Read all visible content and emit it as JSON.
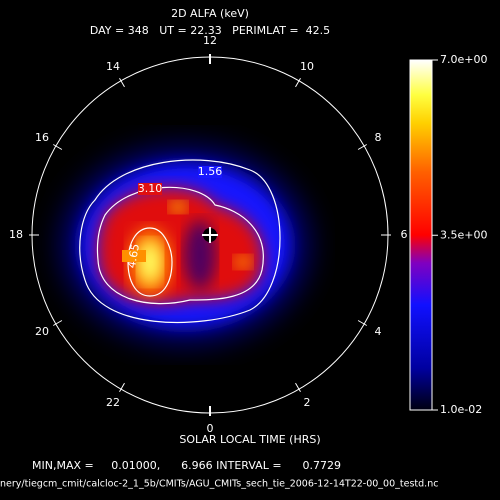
{
  "chart_data": {
    "type": "polar-contour",
    "title": "2D ALFA (keV)",
    "subtitle": "DAY = 348   UT = 22.33   PERIMLAT =  42.5",
    "xlabel": "SOLAR LOCAL TIME (HRS)",
    "angular_lim": [
      0,
      24
    ],
    "angular_ticks": [
      0,
      2,
      4,
      6,
      8,
      10,
      12,
      14,
      16,
      18,
      20,
      22
    ],
    "contours": [
      1.56,
      {
        "value": 3.1,
        "label": "3.10"
      },
      4.65
    ],
    "colorbar_lim": [
      0.01,
      7.0
    ],
    "colorbar_ticks": [
      {
        "value": 7.0,
        "label": "7.0e+00"
      },
      {
        "value": 3.5,
        "label": "3.5e+00"
      },
      {
        "value": 0.01,
        "label": "1.0e-02"
      }
    ],
    "stats": "MIN,MAX =     0.01000,      6.966 INTERVAL =      0.7729",
    "filename": "nery/tiegcm_cmit/calcloc-2_1_5b/CMITs/AGU_CMITs_sech_tie_2006-12-14T22-00_00_testd.nc"
  }
}
